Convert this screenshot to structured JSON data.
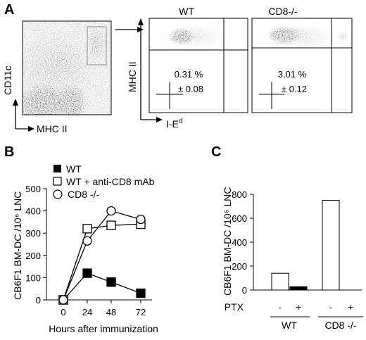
{
  "figure": {
    "panel_a": {
      "letter": "A",
      "y_axis_label": "CD11c",
      "x_axis_label": "MHC II",
      "sub_y_axis_label": "MHC II",
      "sub_x_axis_label_main": "I-E",
      "sub_x_axis_label_sup": "d",
      "plots": [
        {
          "title": "WT",
          "percent": "0.31 %",
          "sd": "± 0.08"
        },
        {
          "title": "CD8-/-",
          "percent": "3.01 %",
          "sd": "± 0.12"
        }
      ]
    },
    "panel_b": {
      "letter": "B"
    },
    "panel_c": {
      "letter": "C"
    }
  },
  "chart_data": [
    {
      "type": "line",
      "panel": "B",
      "xlabel": "Hours after immunization",
      "ylabel": "CB6F1 BM-DC /10⁶ LNC",
      "x": [
        0,
        24,
        48,
        72
      ],
      "x_ticks": [
        "0",
        "24",
        "48",
        "72"
      ],
      "y_ticks": [
        "0",
        "100",
        "200",
        "300",
        "400",
        "500"
      ],
      "ylim": [
        0,
        500
      ],
      "series": [
        {
          "name": "WT",
          "marker": "filled-square",
          "values": [
            0,
            120,
            80,
            30
          ]
        },
        {
          "name": "WT + anti-CD8 mAb",
          "marker": "open-square",
          "values": [
            0,
            320,
            335,
            340
          ]
        },
        {
          "name": "CD8 -/-",
          "marker": "open-circle",
          "values": [
            0,
            265,
            400,
            362
          ]
        }
      ],
      "legend_position": "top-left"
    },
    {
      "type": "bar",
      "panel": "C",
      "ylabel": "CB6F1 BM-DC /10⁶ LNC",
      "y_ticks": [
        "0",
        "200",
        "400",
        "600",
        "800"
      ],
      "ylim": [
        0,
        800
      ],
      "row_label": "PTX",
      "categories": [
        "-",
        "+",
        "-",
        "+"
      ],
      "groups": [
        {
          "name": "WT",
          "categories": [
            "-",
            "+"
          ]
        },
        {
          "name": "CD8 -/-",
          "categories": [
            "-",
            "+"
          ]
        }
      ],
      "values": [
        140,
        28,
        750,
        0
      ],
      "fills": [
        "white",
        "black",
        "white",
        "white"
      ]
    }
  ]
}
